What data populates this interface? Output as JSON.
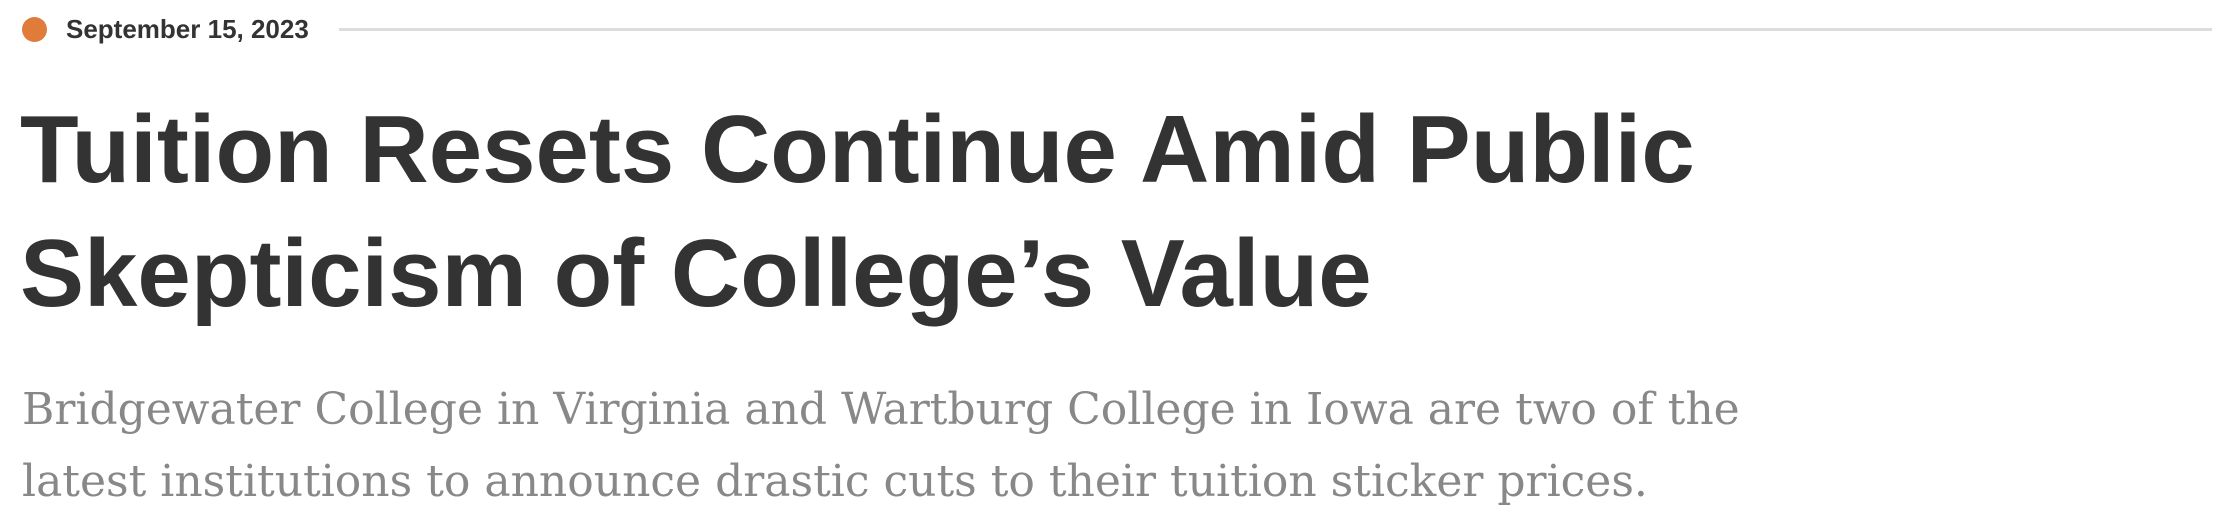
{
  "article": {
    "date": "September 15, 2023",
    "headline": "Tuition Resets Continue Amid Public Skepticism of College’s Value",
    "dek": "Bridgewater College in Virginia and Wartburg College in Iowa are two of the latest institutions to announce drastic cuts to their tuition sticker prices."
  },
  "colors": {
    "accent_dot": "#e07b39",
    "headline_text": "#333333",
    "dek_text": "#888888",
    "rule": "#dddddd"
  }
}
